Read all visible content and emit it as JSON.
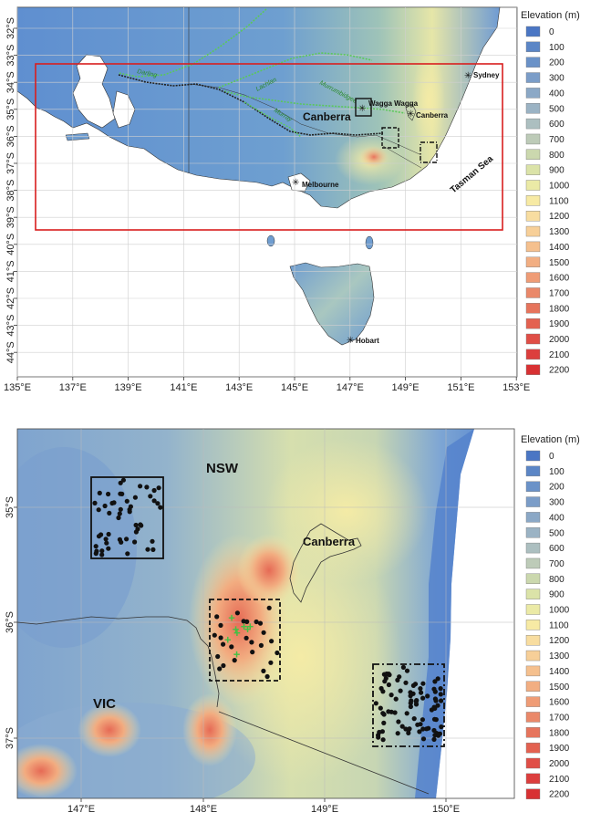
{
  "top_map": {
    "legend_title": "Elevation (m)",
    "lat_ticks": [
      "32°S",
      "33°S",
      "34°S",
      "35°S",
      "36°S",
      "37°S",
      "38°S",
      "39°S",
      "40°S",
      "41°S",
      "42°S",
      "43°S",
      "44°S"
    ],
    "lon_ticks": [
      "135°E",
      "137°E",
      "139°E",
      "141°E",
      "143°E",
      "145°E",
      "147°E",
      "149°E",
      "151°E",
      "153°E"
    ],
    "places": {
      "sydney": "Sydney",
      "wagga": "Wagga Wagga",
      "canberra_small": "Canberra",
      "canberra_big": "Canberra",
      "melbourne": "Melbourne",
      "hobart": "Hobart",
      "tasman": "Tasman Sea"
    },
    "rivers": {
      "darling": "Darling",
      "lachlan": "Lachlan",
      "murrumbidgee": "Murrumbidgee",
      "murray": "Murray"
    }
  },
  "bottom_map": {
    "legend_title": "Elevation (m)",
    "lat_ticks": [
      "35°S",
      "36°S",
      "37°S"
    ],
    "lon_ticks": [
      "147°E",
      "148°E",
      "149°E",
      "150°E"
    ],
    "labels": {
      "nsw": "NSW",
      "vic": "VIC",
      "canberra": "Canberra"
    }
  },
  "legend": {
    "levels": [
      "0",
      "100",
      "200",
      "300",
      "400",
      "500",
      "600",
      "700",
      "800",
      "900",
      "1000",
      "1100",
      "1200",
      "1300",
      "1400",
      "1500",
      "1600",
      "1700",
      "1800",
      "1900",
      "2000",
      "2100",
      "2200"
    ],
    "colors": [
      "#4a76c4",
      "#5b86c6",
      "#6a92c8",
      "#7b9dc8",
      "#8ba8c6",
      "#9bb3c4",
      "#acbfc0",
      "#bdcbb8",
      "#cbd8ae",
      "#dbe3a8",
      "#ebeaa6",
      "#f7eaa4",
      "#f8dda0",
      "#f7cf98",
      "#f5c08e",
      "#f2ae82",
      "#ef9c76",
      "#ea8869",
      "#e6745c",
      "#e36150",
      "#e04e46",
      "#dc3e3d",
      "#d83133"
    ]
  }
}
